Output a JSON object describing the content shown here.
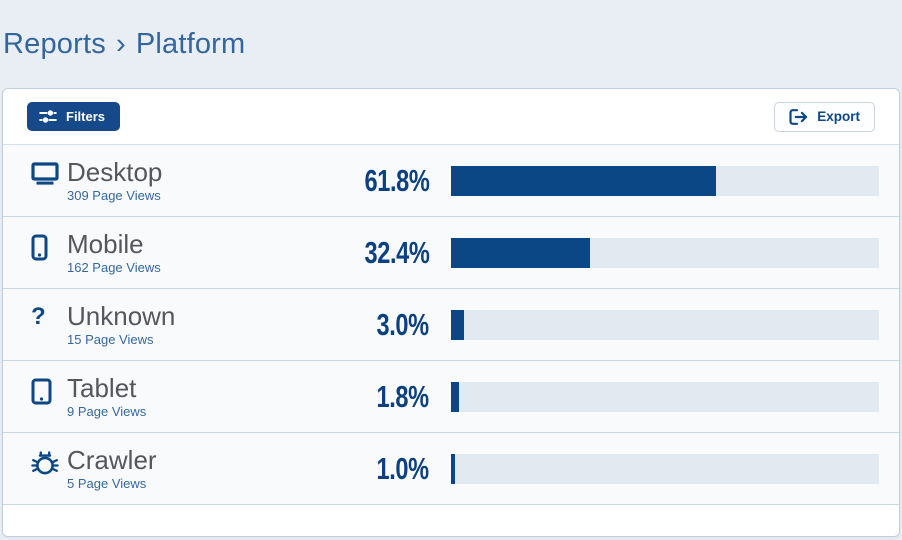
{
  "breadcrumb": {
    "section": "Reports",
    "separator": "›",
    "current": "Platform"
  },
  "toolbar": {
    "filters_label": "Filters",
    "export_label": "Export"
  },
  "rows": [
    {
      "label": "Desktop",
      "views": "309 Page Views",
      "percent": "61.8%",
      "value": 61.8,
      "icon": "desktop-icon"
    },
    {
      "label": "Mobile",
      "views": "162 Page Views",
      "percent": "32.4%",
      "value": 32.4,
      "icon": "mobile-icon"
    },
    {
      "label": "Unknown",
      "views": "15 Page Views",
      "percent": "3.0%",
      "value": 3.0,
      "icon": "question-mark-icon",
      "icon_glyph": "?"
    },
    {
      "label": "Tablet",
      "views": "9 Page Views",
      "percent": "1.8%",
      "value": 1.8,
      "icon": "tablet-icon"
    },
    {
      "label": "Crawler",
      "views": "5 Page Views",
      "percent": "1.0%",
      "value": 1.0,
      "icon": "bug-icon"
    }
  ],
  "chart_data": {
    "type": "bar",
    "orientation": "horizontal",
    "title": "Reports › Platform",
    "categories": [
      "Desktop",
      "Mobile",
      "Unknown",
      "Tablet",
      "Crawler"
    ],
    "values": [
      61.8,
      32.4,
      3.0,
      1.8,
      1.0
    ],
    "value_labels": [
      "61.8%",
      "32.4%",
      "3.0%",
      "1.8%",
      "1.0%"
    ],
    "page_views": [
      309,
      162,
      15,
      9,
      5
    ],
    "xlim": [
      0,
      100
    ],
    "bar_color": "#0a4784",
    "track_color": "#e3e9f0"
  },
  "colors": {
    "navy_primary": "#0d4784",
    "percent_text": "#0c4181",
    "breadcrumb_blue": "#33669e",
    "views_blue": "#35689e",
    "title_gray": "#55575c",
    "page_background": "#e9eef4",
    "row_background": "#f9fafc",
    "bar_track": "#e3e9f0",
    "row_separator": "#c9d7e3",
    "card_border": "#bfcfdf",
    "filters_button_bg": "#15498a"
  }
}
